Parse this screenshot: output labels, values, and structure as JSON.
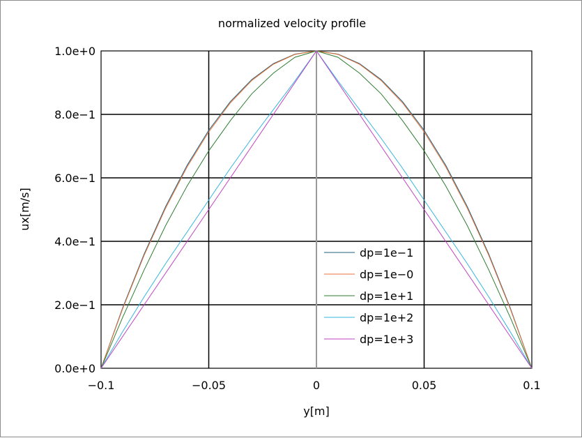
{
  "chart_data": {
    "type": "line",
    "title": "normalized velocity profile",
    "xlabel": "y[m]",
    "ylabel": "ux[m/s]",
    "xlim": [
      -0.1,
      0.1
    ],
    "ylim": [
      0,
      1
    ],
    "xticks": [
      -0.1,
      -0.05,
      0,
      0.05,
      0.1
    ],
    "xtick_labels": [
      "−0.1",
      "−0.05",
      "0",
      "0.05",
      "0.1"
    ],
    "yticks": [
      0,
      0.2,
      0.4,
      0.6,
      0.8,
      1.0
    ],
    "ytick_labels": [
      "0.0e+0",
      "2.0e−1",
      "4.0e−1",
      "6.0e−1",
      "8.0e−1",
      "1.0e+0"
    ],
    "grid": true,
    "legend_position": "inside-lower-center-right",
    "x": [
      -0.1,
      -0.09,
      -0.08,
      -0.07,
      -0.06,
      -0.05,
      -0.04,
      -0.03,
      -0.02,
      -0.01,
      0,
      0.01,
      0.02,
      0.03,
      0.04,
      0.05,
      0.06,
      0.07,
      0.08,
      0.09,
      0.1
    ],
    "series": [
      {
        "name": "dp=1e−1",
        "color": "#1f5f7a",
        "values": [
          0,
          0.19,
          0.36,
          0.51,
          0.64,
          0.75,
          0.84,
          0.91,
          0.96,
          0.99,
          1.0,
          0.99,
          0.96,
          0.91,
          0.84,
          0.75,
          0.64,
          0.51,
          0.36,
          0.19,
          0
        ]
      },
      {
        "name": "dp=1e−0",
        "color": "#e8733a",
        "values": [
          0,
          0.187,
          0.356,
          0.505,
          0.635,
          0.745,
          0.836,
          0.907,
          0.958,
          0.989,
          1.0,
          0.989,
          0.958,
          0.907,
          0.836,
          0.745,
          0.635,
          0.505,
          0.356,
          0.187,
          0
        ]
      },
      {
        "name": "dp=1e+1",
        "color": "#2e7d32",
        "values": [
          0,
          0.16,
          0.31,
          0.45,
          0.575,
          0.685,
          0.78,
          0.865,
          0.93,
          0.98,
          1.0,
          0.98,
          0.93,
          0.865,
          0.78,
          0.685,
          0.575,
          0.45,
          0.31,
          0.16,
          0
        ]
      },
      {
        "name": "dp=1e+2",
        "color": "#36b4e0",
        "values": [
          0,
          0.115,
          0.225,
          0.33,
          0.43,
          0.53,
          0.63,
          0.725,
          0.815,
          0.905,
          1.0,
          0.905,
          0.815,
          0.725,
          0.63,
          0.53,
          0.43,
          0.33,
          0.225,
          0.115,
          0
        ]
      },
      {
        "name": "dp=1e+3",
        "color": "#c040c0",
        "values": [
          0,
          0.1,
          0.2,
          0.3,
          0.4,
          0.5,
          0.6,
          0.7,
          0.8,
          0.9,
          1.0,
          0.9,
          0.8,
          0.7,
          0.6,
          0.5,
          0.4,
          0.3,
          0.2,
          0.1,
          0
        ]
      }
    ]
  }
}
